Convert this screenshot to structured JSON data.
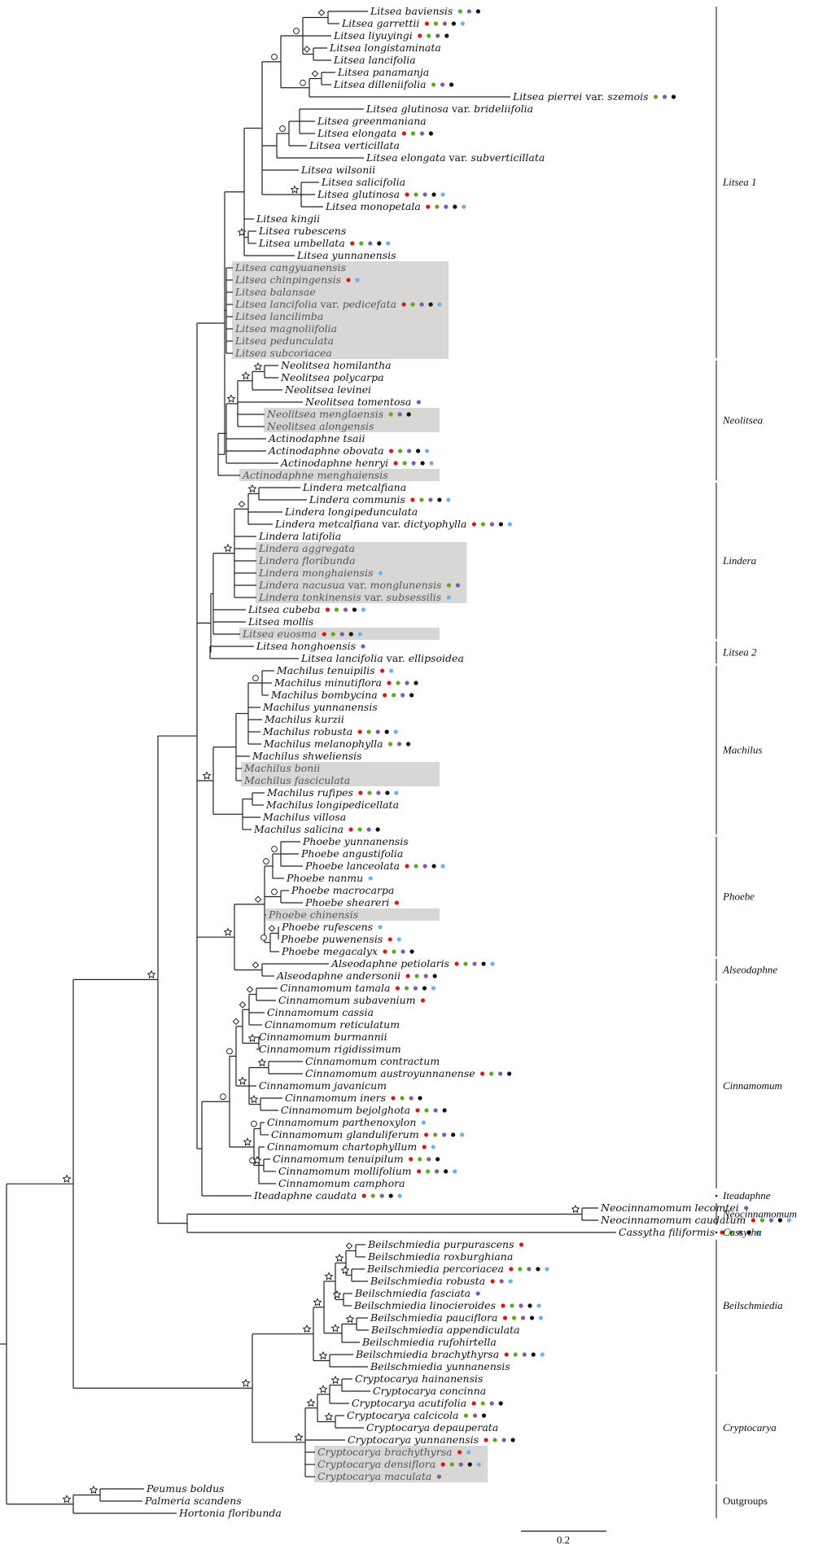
{
  "figure": {
    "type": "phylogenetic-tree",
    "scale_bar_label": "0.2",
    "scale_bar_value": 0.2
  },
  "trait_colors": {
    "red": "#d7191c",
    "green": "#5aab1f",
    "purple": "#7b5ea7",
    "black": "#111111",
    "blue": "#6ab4ea"
  },
  "highlight_color": "#d9d6d6",
  "support_symbols": [
    "star-icon",
    "circle-icon",
    "diamond-icon"
  ],
  "clades": [
    {
      "label": "Litsea 1",
      "italic": true
    },
    {
      "label": "Neolitsea",
      "italic": true
    },
    {
      "label": "Lindera",
      "italic": true
    },
    {
      "label": "Litsea 2",
      "italic": true
    },
    {
      "label": "Machilus",
      "italic": true
    },
    {
      "label": "Phoebe",
      "italic": true
    },
    {
      "label": "Alseodaphne",
      "italic": true
    },
    {
      "label": "Cinnamomum",
      "italic": true
    },
    {
      "label": "Iteadaphne",
      "italic": true
    },
    {
      "label": "Neocinnamomum",
      "italic": true
    },
    {
      "label": "Cassytha",
      "italic": true
    },
    {
      "label": "Beilschmiedia",
      "italic": true
    },
    {
      "label": "Cryptocarya",
      "italic": true
    },
    {
      "label": "Outgroups",
      "italic": false
    }
  ],
  "taxa": [
    {
      "name": "Litsea baviensis",
      "dots": [
        "green",
        "purple",
        "black"
      ]
    },
    {
      "name": "Litsea garrettii",
      "dots": [
        "red",
        "green",
        "purple",
        "black",
        "blue"
      ]
    },
    {
      "name": "Litsea liyuyingi",
      "dots": [
        "red",
        "green",
        "purple",
        "black"
      ]
    },
    {
      "name": "Litsea longistaminata",
      "dots": []
    },
    {
      "name": "Litsea lancifolia",
      "dots": []
    },
    {
      "name": "Litsea panamanja",
      "dots": []
    },
    {
      "name": "Litsea dilleniifolia",
      "dots": [
        "green",
        "purple",
        "black"
      ]
    },
    {
      "name": "Litsea pierrei",
      "var": "szemois",
      "dots": [
        "green",
        "purple",
        "black"
      ]
    },
    {
      "name": "Litsea glutinosa",
      "var": "brideliifolia",
      "dots": []
    },
    {
      "name": "Litsea greenmaniana",
      "dots": []
    },
    {
      "name": "Litsea elongata",
      "dots": [
        "red",
        "green",
        "purple",
        "black"
      ]
    },
    {
      "name": "Litsea verticillata",
      "dots": []
    },
    {
      "name": "Litsea elongata",
      "var": "subverticillata",
      "dots": []
    },
    {
      "name": "Litsea wilsonii",
      "dots": []
    },
    {
      "name": "Litsea salicifolia",
      "dots": []
    },
    {
      "name": "Litsea glutinosa",
      "dots": [
        "red",
        "green",
        "purple",
        "black",
        "blue"
      ]
    },
    {
      "name": "Litsea monopetala",
      "dots": [
        "red",
        "green",
        "purple",
        "black",
        "blue"
      ]
    },
    {
      "name": "Litsea kingii",
      "dots": []
    },
    {
      "name": "Litsea rubescens",
      "dots": []
    },
    {
      "name": "Litsea umbellata",
      "dots": [
        "red",
        "green",
        "purple",
        "black",
        "blue"
      ]
    },
    {
      "name": "Litsea yunnanensis",
      "dots": []
    },
    {
      "name": "Litsea cangyuanensis",
      "gray": true,
      "dots": []
    },
    {
      "name": "Litsea chinpingensis",
      "gray": true,
      "dots": [
        "red",
        "blue"
      ]
    },
    {
      "name": "Litsea balansae",
      "gray": true,
      "dots": []
    },
    {
      "name": "Litsea lancifolia",
      "var": "pedicefata",
      "gray": true,
      "dots": [
        "red",
        "green",
        "purple",
        "black",
        "blue"
      ]
    },
    {
      "name": "Litsea lancilimba",
      "gray": true,
      "dots": []
    },
    {
      "name": "Litsea magnoliifolia",
      "gray": true,
      "dots": []
    },
    {
      "name": "Litsea pedunculata",
      "gray": true,
      "dots": []
    },
    {
      "name": "Litsea subcoriacea",
      "gray": true,
      "dots": []
    },
    {
      "name": "Neolitsea homilantha",
      "dots": []
    },
    {
      "name": "Neolitsea polycarpa",
      "dots": []
    },
    {
      "name": "Neolitsea levinei",
      "dots": []
    },
    {
      "name": "Neolitsea tomentosa",
      "dots": [
        "purple"
      ]
    },
    {
      "name": "Neolitsea menglaensis",
      "gray": true,
      "dots": [
        "green",
        "purple",
        "black"
      ]
    },
    {
      "name": "Neolitsea alongensis",
      "gray": true,
      "dots": []
    },
    {
      "name": "Actinodaphne tsaii",
      "dots": []
    },
    {
      "name": "Actinodaphne obovata",
      "dots": [
        "red",
        "green",
        "purple",
        "black",
        "blue"
      ]
    },
    {
      "name": "Actinodaphne henryi",
      "dots": [
        "red",
        "green",
        "purple",
        "black",
        "blue"
      ]
    },
    {
      "name": "Actinodaphne menghaiensis",
      "gray": true,
      "dots": []
    },
    {
      "name": "Lindera metcalfiana",
      "dots": []
    },
    {
      "name": "Lindera communis",
      "dots": [
        "red",
        "green",
        "purple",
        "black",
        "blue"
      ]
    },
    {
      "name": "Lindera longipedunculata",
      "dots": []
    },
    {
      "name": "Lindera metcalfiana",
      "var": "dictyophylla",
      "dots": [
        "red",
        "green",
        "purple",
        "black",
        "blue"
      ]
    },
    {
      "name": "Lindera latifolia",
      "dots": []
    },
    {
      "name": "Lindera aggregata",
      "gray": true,
      "dots": []
    },
    {
      "name": "Lindera floribunda",
      "gray": true,
      "dots": []
    },
    {
      "name": "Lindera monghaiensis",
      "gray": true,
      "dots": [
        "blue"
      ]
    },
    {
      "name": "Lindera nacusua",
      "var": "monglunensis",
      "gray": true,
      "dots": [
        "green",
        "purple"
      ]
    },
    {
      "name": "Lindera tonkinensis",
      "var": "subsessilis",
      "gray": true,
      "dots": [
        "blue"
      ]
    },
    {
      "name": "Litsea cubeba",
      "dots": [
        "red",
        "green",
        "purple",
        "black",
        "blue"
      ]
    },
    {
      "name": "Litsea mollis",
      "dots": []
    },
    {
      "name": "Litsea euosma",
      "gray": true,
      "dots": [
        "red",
        "green",
        "purple",
        "black",
        "blue"
      ]
    },
    {
      "name": "Litsea honghoensis",
      "dots": [
        "purple"
      ]
    },
    {
      "name": "Litsea lancifolia",
      "var": "ellipsoidea",
      "dots": []
    },
    {
      "name": "Machilus tenuipilis",
      "dots": [
        "red",
        "blue"
      ]
    },
    {
      "name": "Machilus minutiflora",
      "dots": [
        "red",
        "green",
        "purple",
        "black"
      ]
    },
    {
      "name": "Machilus bombycina",
      "dots": [
        "red",
        "green",
        "purple",
        "black"
      ]
    },
    {
      "name": "Machilus yunnanensis",
      "dots": []
    },
    {
      "name": "Machilus kurzii",
      "dots": []
    },
    {
      "name": "Machilus robusta",
      "dots": [
        "red",
        "green",
        "purple",
        "black",
        "blue"
      ]
    },
    {
      "name": "Machilus melanophylla",
      "dots": [
        "green",
        "purple",
        "black"
      ]
    },
    {
      "name": "Machilus shweliensis",
      "dots": []
    },
    {
      "name": "Machilus bonii",
      "gray": true,
      "dots": []
    },
    {
      "name": "Machilus fasciculata",
      "gray": true,
      "dots": []
    },
    {
      "name": "Machilus rufipes",
      "dots": [
        "red",
        "green",
        "purple",
        "black",
        "blue"
      ]
    },
    {
      "name": "Machilus longipedicellata",
      "dots": []
    },
    {
      "name": "Machilus villosa",
      "dots": []
    },
    {
      "name": "Machilus salicina",
      "dots": [
        "red",
        "green",
        "purple",
        "black"
      ]
    },
    {
      "name": "Phoebe yunnanensis",
      "dots": []
    },
    {
      "name": "Phoebe angustifolia",
      "dots": []
    },
    {
      "name": "Phoebe lanceolata",
      "dots": [
        "red",
        "green",
        "purple",
        "black",
        "blue"
      ]
    },
    {
      "name": "Phoebe nanmu",
      "dots": [
        "blue"
      ]
    },
    {
      "name": "Phoebe macrocarpa",
      "dots": []
    },
    {
      "name": "Phoebe sheareri",
      "dots": [
        "red"
      ]
    },
    {
      "name": "Phoebe chinensis",
      "gray": true,
      "dots": []
    },
    {
      "name": "Phoebe rufescens",
      "dots": [
        "blue"
      ]
    },
    {
      "name": "Phoebe puwenensis",
      "dots": [
        "red",
        "blue"
      ]
    },
    {
      "name": "Phoebe megacalyx",
      "dots": [
        "red",
        "green",
        "purple",
        "black"
      ]
    },
    {
      "name": "Alseodaphne petiolaris",
      "dots": [
        "red",
        "green",
        "purple",
        "black",
        "blue"
      ]
    },
    {
      "name": "Alseodaphne andersonii",
      "dots": [
        "red",
        "green",
        "purple",
        "black"
      ]
    },
    {
      "name": "Cinnamomum tamala",
      "dots": [
        "red",
        "green",
        "purple",
        "black",
        "blue"
      ]
    },
    {
      "name": "Cinnamomum subavenium",
      "dots": [
        "red"
      ]
    },
    {
      "name": "Cinnamomum cassia",
      "dots": []
    },
    {
      "name": "Cinnamomum reticulatum",
      "dots": []
    },
    {
      "name": "Cinnamomum burmannii",
      "dots": []
    },
    {
      "name": "Cinnamomum rigidissimum",
      "dots": []
    },
    {
      "name": "Cinnamomum contractum",
      "dots": []
    },
    {
      "name": "Cinnamomum austroyunnanense",
      "dots": [
        "red",
        "green",
        "purple",
        "black"
      ]
    },
    {
      "name": "Cinnamomum javanicum",
      "dots": []
    },
    {
      "name": "Cinnamomum iners",
      "dots": [
        "red",
        "green",
        "purple",
        "black"
      ]
    },
    {
      "name": "Cinnamomum bejolghota",
      "dots": [
        "red",
        "green",
        "purple",
        "black"
      ]
    },
    {
      "name": "Cinnamomum parthenoxylon",
      "dots": [
        "blue"
      ]
    },
    {
      "name": "Cinnamomum glanduliferum",
      "dots": [
        "red",
        "green",
        "purple",
        "black",
        "blue"
      ]
    },
    {
      "name": "Cinnamomum chartophyllum",
      "dots": [
        "red",
        "blue"
      ]
    },
    {
      "name": "Cinnamomum tenuipilum",
      "dots": [
        "red",
        "green",
        "purple",
        "black"
      ]
    },
    {
      "name": "Cinnamomum mollifolium",
      "dots": [
        "red",
        "green",
        "purple",
        "black",
        "blue"
      ]
    },
    {
      "name": "Cinnamomum camphora",
      "dots": []
    },
    {
      "name": "Iteadaphne caudata",
      "dots": [
        "red",
        "green",
        "purple",
        "black",
        "blue"
      ]
    },
    {
      "name": "Neocinnamomum lecomtei",
      "dots": [
        "purple"
      ]
    },
    {
      "name": "Neocinnamomum caudatum",
      "dots": [
        "red",
        "green",
        "purple",
        "black",
        "blue"
      ]
    },
    {
      "name": "Cassytha filiformis",
      "dots": [
        "red",
        "green",
        "purple",
        "black",
        "blue"
      ]
    },
    {
      "name": "Beilschmiedia purpurascens",
      "dots": [
        "red"
      ]
    },
    {
      "name": "Beilschmiedia roxburghiana",
      "dots": []
    },
    {
      "name": "Beilschmiedia percoriacea",
      "dots": [
        "red",
        "green",
        "purple",
        "black",
        "blue"
      ]
    },
    {
      "name": "Beilschmiedia robusta",
      "dots": [
        "red",
        "purple",
        "blue"
      ]
    },
    {
      "name": "Beilschmiedia fasciata",
      "dots": [
        "purple"
      ]
    },
    {
      "name": "Beilschmiedia linocieroides",
      "dots": [
        "red",
        "green",
        "purple",
        "black",
        "blue"
      ]
    },
    {
      "name": "Beilschmiedia pauciflora",
      "dots": [
        "red",
        "green",
        "purple",
        "black",
        "blue"
      ]
    },
    {
      "name": "Beilschmiedia appendiculata",
      "dots": []
    },
    {
      "name": "Beilschmiedia rufohirtella",
      "dots": []
    },
    {
      "name": "Beilschmiedia brachythyrsa",
      "dots": [
        "red",
        "green",
        "purple",
        "black",
        "blue"
      ]
    },
    {
      "name": "Beilschmiedia yunnanensis",
      "dots": []
    },
    {
      "name": "Cryptocarya hainanensis",
      "dots": []
    },
    {
      "name": "Cryptocarya concinna",
      "dots": []
    },
    {
      "name": "Cryptocarya acutifolia",
      "dots": [
        "red",
        "green",
        "purple",
        "black"
      ]
    },
    {
      "name": "Cryptocarya calcicola",
      "dots": [
        "green",
        "purple",
        "black"
      ]
    },
    {
      "name": "Cryptocarya depauperata",
      "dots": []
    },
    {
      "name": "Cryptocarya yunnanensis",
      "dots": [
        "red",
        "green",
        "purple",
        "black"
      ]
    },
    {
      "name": "Cryptocarya brachythyrsa",
      "gray": true,
      "dots": [
        "red",
        "blue"
      ]
    },
    {
      "name": "Cryptocarya densiflora",
      "gray": true,
      "dots": [
        "red",
        "green",
        "purple",
        "black",
        "blue"
      ]
    },
    {
      "name": "Cryptocarya maculata",
      "gray": true,
      "dots": [
        "purple"
      ]
    },
    {
      "name": "Peumus boldus",
      "dots": []
    },
    {
      "name": "Palmeria scandens",
      "dots": []
    },
    {
      "name": "Hortonia floribunda",
      "dots": []
    }
  ],
  "var_word": "var."
}
